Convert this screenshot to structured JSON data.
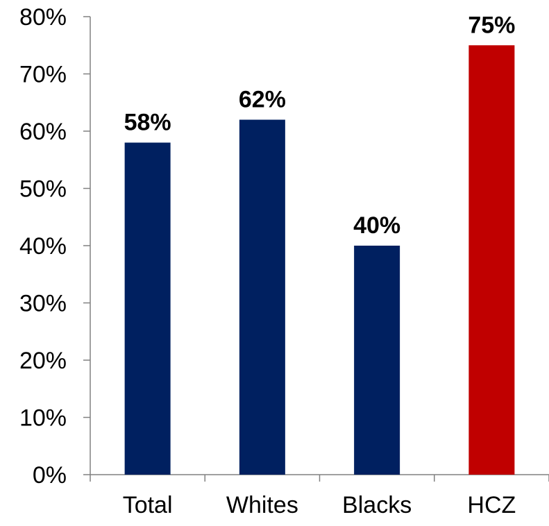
{
  "chart_data": {
    "type": "bar",
    "title": "",
    "xlabel": "",
    "ylabel": "",
    "categories": [
      "Total",
      "Whites",
      "Blacks",
      "HCZ"
    ],
    "values": [
      0.58,
      0.62,
      0.4,
      0.75
    ],
    "value_labels": [
      "58%",
      "62%",
      "40%",
      "75%"
    ],
    "bar_colors": [
      "#002060",
      "#002060",
      "#002060",
      "#C00000"
    ],
    "ylim": [
      0,
      0.8
    ],
    "yticks": [
      0,
      0.1,
      0.2,
      0.3,
      0.4,
      0.5,
      0.6,
      0.7,
      0.8
    ],
    "ytick_labels": [
      "0%",
      "10%",
      "20%",
      "30%",
      "40%",
      "50%",
      "60%",
      "70%",
      "80%"
    ],
    "grid": false,
    "legend": "none"
  }
}
